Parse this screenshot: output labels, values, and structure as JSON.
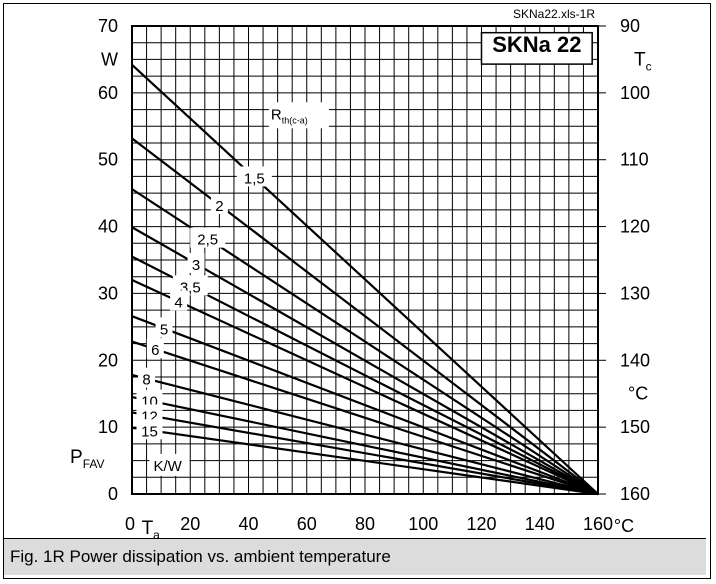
{
  "chart_data": {
    "type": "line",
    "source_label": "SKNa22.xls-1R",
    "device_label": "SKNa 22",
    "left_axis": {
      "ticks": [
        "0",
        "10",
        "20",
        "30",
        "40",
        "50",
        "60",
        "70"
      ],
      "tick_values": [
        0,
        10,
        20,
        30,
        40,
        50,
        60,
        70
      ],
      "unit": "W",
      "label_main": "P",
      "label_sub": "FAV",
      "range": [
        0,
        70
      ]
    },
    "right_axis": {
      "ticks": [
        "160",
        "150",
        "140",
        "130",
        "120",
        "110",
        "100",
        "90"
      ],
      "label_main": "T",
      "label_sub": "c",
      "unit": "°C"
    },
    "x_axis": {
      "ticks": [
        "0",
        "20",
        "40",
        "60",
        "80",
        "100",
        "120",
        "140",
        "160"
      ],
      "tick_values": [
        0,
        20,
        40,
        60,
        80,
        100,
        120,
        140,
        160
      ],
      "label_main": "T",
      "label_sub": "a",
      "unit": "°C",
      "range": [
        0,
        160
      ]
    },
    "curve_family_label": {
      "main": "R",
      "sub": "th(c-a)"
    },
    "resistance_unit": "K/W",
    "grid": true,
    "series": [
      {
        "name": "1,5",
        "x": [
          0,
          160
        ],
        "y": [
          64.2,
          0
        ]
      },
      {
        "name": "2",
        "x": [
          0,
          160
        ],
        "y": [
          53.2,
          0
        ]
      },
      {
        "name": "2,5",
        "x": [
          0,
          160
        ],
        "y": [
          45.6,
          0
        ]
      },
      {
        "name": "3",
        "x": [
          0,
          160
        ],
        "y": [
          39.9,
          0
        ]
      },
      {
        "name": "3,5",
        "x": [
          0,
          160
        ],
        "y": [
          35.5,
          0
        ]
      },
      {
        "name": "4",
        "x": [
          0,
          160
        ],
        "y": [
          32.0,
          0
        ]
      },
      {
        "name": "5",
        "x": [
          0,
          160
        ],
        "y": [
          26.6,
          0
        ]
      },
      {
        "name": "6",
        "x": [
          0,
          160
        ],
        "y": [
          22.8,
          0
        ]
      },
      {
        "name": "8",
        "x": [
          0,
          160
        ],
        "y": [
          17.8,
          0
        ]
      },
      {
        "name": "10",
        "x": [
          0,
          160
        ],
        "y": [
          14.5,
          0
        ]
      },
      {
        "name": "12",
        "x": [
          0,
          160
        ],
        "y": [
          12.2,
          0
        ]
      },
      {
        "name": "15",
        "x": [
          0,
          160
        ],
        "y": [
          9.9,
          0
        ]
      }
    ]
  },
  "caption": "Fig. 1R Power dissipation vs. ambient temperature"
}
